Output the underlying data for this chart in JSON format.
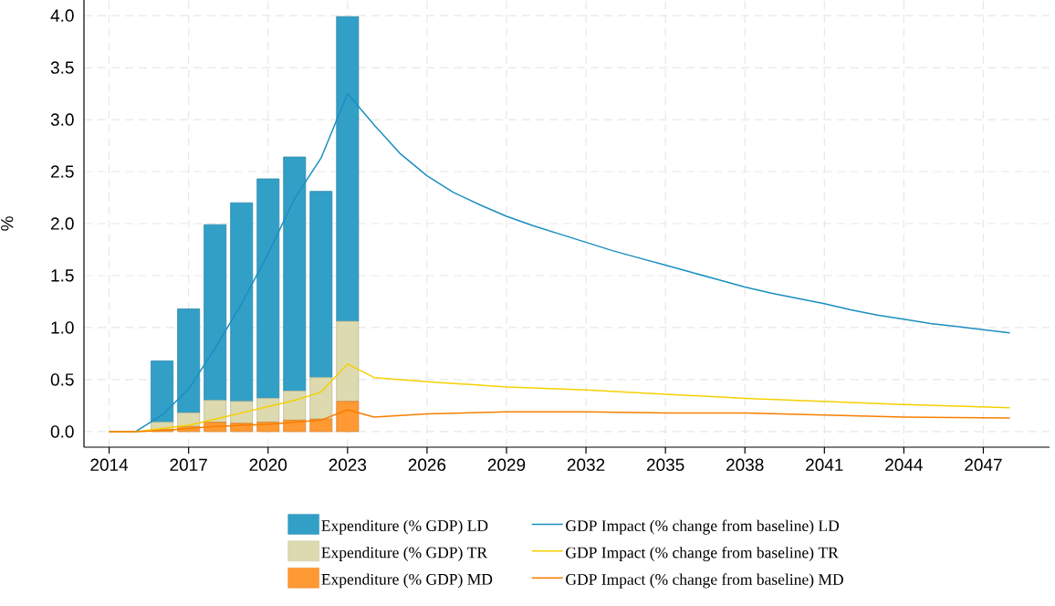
{
  "chart_data": {
    "type": "bar",
    "ylabel": "%",
    "stacked": true,
    "grid": true,
    "legend": "bottom",
    "x": [
      2016,
      2017,
      2018,
      2019,
      2020,
      2021,
      2022,
      2023
    ],
    "xlim": [
      2013.05,
      2049.5
    ],
    "xticks": [
      2014,
      2017,
      2020,
      2023,
      2026,
      2029,
      2032,
      2035,
      2038,
      2041,
      2044,
      2047
    ],
    "ylim": [
      -0.15,
      4.15
    ],
    "yticks": [
      {
        "value": 0,
        "label": "0.0"
      },
      {
        "value": 0.5,
        "label": "0.5"
      },
      {
        "value": 1,
        "label": "1.0"
      },
      {
        "value": 1.5,
        "label": "1.5"
      },
      {
        "value": 2,
        "label": "2.0"
      },
      {
        "value": 2.5,
        "label": "2.5"
      },
      {
        "value": 3,
        "label": "3.0"
      },
      {
        "value": 3.5,
        "label": "3.5"
      },
      {
        "value": 4,
        "label": "4.0"
      }
    ],
    "series": [
      {
        "name": "Expenditure (% GDP) MD",
        "color": "#fe9933",
        "values": [
          0.02,
          0.05,
          0.09,
          0.08,
          0.09,
          0.11,
          0.12,
          0.29
        ]
      },
      {
        "name": "Expenditure (% GDP) TR",
        "color": "#dddab0",
        "values": [
          0.07,
          0.13,
          0.21,
          0.21,
          0.23,
          0.28,
          0.4,
          0.77
        ]
      },
      {
        "name": "Expenditure (% GDP) LD",
        "color": "#329fc7",
        "values": [
          0.59,
          1.0,
          1.69,
          1.91,
          2.11,
          2.25,
          1.79,
          2.93
        ]
      },
      {
        "name": "GDP Impact (% change from baseline) LD",
        "type": "line",
        "color": "#1a8fc0",
        "x": [
          2014,
          2015,
          2016,
          2017,
          2018,
          2019,
          2020,
          2021,
          2022,
          2023,
          2024,
          2025,
          2026,
          2027,
          2028,
          2029,
          2030,
          2031,
          2032,
          2033,
          2034,
          2035,
          2036,
          2037,
          2038,
          2039,
          2040,
          2041,
          2042,
          2043,
          2044,
          2045,
          2046,
          2047,
          2048
        ],
        "values": [
          0,
          0,
          0.16,
          0.41,
          0.8,
          1.23,
          1.71,
          2.24,
          2.63,
          3.25,
          2.95,
          2.67,
          2.46,
          2.3,
          2.18,
          2.07,
          1.98,
          1.9,
          1.82,
          1.74,
          1.67,
          1.6,
          1.53,
          1.46,
          1.39,
          1.33,
          1.28,
          1.23,
          1.17,
          1.12,
          1.08,
          1.04,
          1.01,
          0.98,
          0.95
        ]
      },
      {
        "name": "GDP Impact (% change from baseline) TR",
        "type": "line",
        "color": "#f5d000",
        "x": [
          2014,
          2015,
          2016,
          2017,
          2018,
          2019,
          2020,
          2021,
          2022,
          2023,
          2024,
          2026,
          2029,
          2032,
          2035,
          2038,
          2041,
          2044,
          2048
        ],
        "values": [
          0,
          0,
          0.03,
          0.06,
          0.12,
          0.18,
          0.24,
          0.3,
          0.38,
          0.65,
          0.52,
          0.48,
          0.43,
          0.4,
          0.36,
          0.32,
          0.29,
          0.26,
          0.23
        ]
      },
      {
        "name": "GDP Impact (% change from baseline) MD",
        "type": "line",
        "color": "#f77f00",
        "x": [
          2014,
          2015,
          2016,
          2017,
          2018,
          2019,
          2020,
          2021,
          2022,
          2023,
          2024,
          2026,
          2029,
          2032,
          2035,
          2038,
          2041,
          2044,
          2048
        ],
        "values": [
          0,
          0,
          0.01,
          0.03,
          0.05,
          0.06,
          0.07,
          0.09,
          0.11,
          0.21,
          0.14,
          0.17,
          0.19,
          0.19,
          0.18,
          0.18,
          0.16,
          0.14,
          0.13
        ]
      }
    ]
  }
}
